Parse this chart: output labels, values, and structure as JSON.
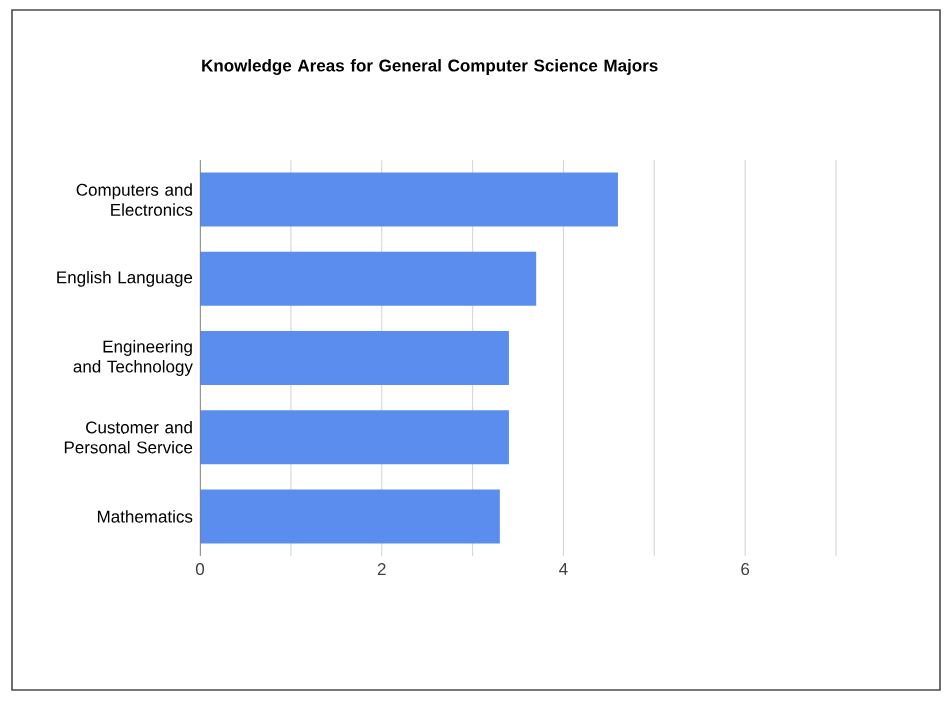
{
  "chart_data": {
    "type": "bar",
    "orientation": "horizontal",
    "title": "Knowledge Areas for General Computer Science Majors",
    "categories": [
      "Computers and Electronics",
      "English Language",
      "Engineering and Technology",
      "Customer and Personal Service",
      "Mathematics"
    ],
    "values": [
      4.6,
      3.7,
      3.4,
      3.4,
      3.3
    ],
    "color": "#5a8ded",
    "xlim": [
      0,
      7
    ],
    "xticks": [
      0,
      {
        "value": 1,
        "label": null
      },
      2,
      {
        "value": 3,
        "label": null
      },
      4,
      {
        "value": 5,
        "label": null
      },
      6,
      {
        "value": 7,
        "label": null
      }
    ],
    "grid": "x"
  }
}
